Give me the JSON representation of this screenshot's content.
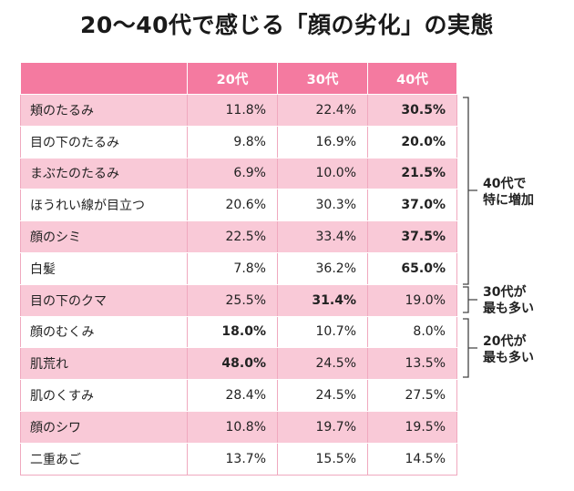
{
  "title": "20〜40代で感じる「顔の劣化」の実態",
  "chart_data": {
    "type": "table",
    "columns": [
      "",
      "20代",
      "30代",
      "40代"
    ],
    "rows": [
      {
        "label": "頬のたるみ",
        "values": [
          "11.8%",
          "22.4%",
          "30.5%"
        ],
        "bold": [
          false,
          false,
          true
        ]
      },
      {
        "label": "目の下のたるみ",
        "values": [
          "9.8%",
          "16.9%",
          "20.0%"
        ],
        "bold": [
          false,
          false,
          true
        ]
      },
      {
        "label": "まぶたのたるみ",
        "values": [
          "6.9%",
          "10.0%",
          "21.5%"
        ],
        "bold": [
          false,
          false,
          true
        ]
      },
      {
        "label": "ほうれい線が目立つ",
        "values": [
          "20.6%",
          "30.3%",
          "37.0%"
        ],
        "bold": [
          false,
          false,
          true
        ]
      },
      {
        "label": "顔のシミ",
        "values": [
          "22.5%",
          "33.4%",
          "37.5%"
        ],
        "bold": [
          false,
          false,
          true
        ]
      },
      {
        "label": "白髪",
        "values": [
          "7.8%",
          "36.2%",
          "65.0%"
        ],
        "bold": [
          false,
          false,
          true
        ]
      },
      {
        "label": "目の下のクマ",
        "values": [
          "25.5%",
          "31.4%",
          "19.0%"
        ],
        "bold": [
          false,
          true,
          false
        ]
      },
      {
        "label": "顔のむくみ",
        "values": [
          "18.0%",
          "10.7%",
          "8.0%"
        ],
        "bold": [
          true,
          false,
          false
        ]
      },
      {
        "label": "肌荒れ",
        "values": [
          "48.0%",
          "24.5%",
          "13.5%"
        ],
        "bold": [
          true,
          false,
          false
        ]
      },
      {
        "label": "肌のくすみ",
        "values": [
          "28.4%",
          "24.5%",
          "27.5%"
        ],
        "bold": [
          false,
          false,
          false
        ]
      },
      {
        "label": "顔のシワ",
        "values": [
          "10.8%",
          "19.7%",
          "19.5%"
        ],
        "bold": [
          false,
          false,
          false
        ]
      },
      {
        "label": "二重あご",
        "values": [
          "13.7%",
          "15.5%",
          "14.5%"
        ],
        "bold": [
          false,
          false,
          false
        ]
      }
    ],
    "annotations": [
      {
        "lines": [
          "40代で",
          "特に増加"
        ]
      },
      {
        "lines": [
          "30代が",
          "最も多い"
        ]
      },
      {
        "lines": [
          "20代が",
          "最も多い"
        ]
      }
    ]
  },
  "colors": {
    "header": "#f47aa0",
    "stripe": "#f9c9d7"
  }
}
